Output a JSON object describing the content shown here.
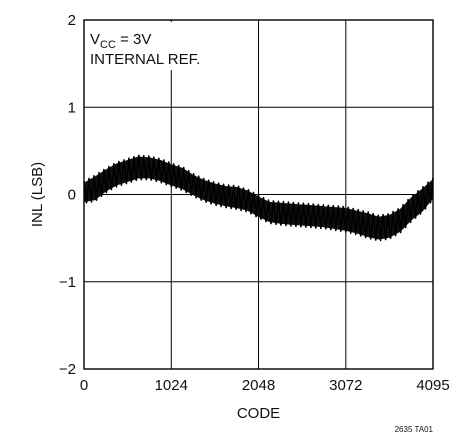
{
  "chart_data": {
    "type": "line",
    "title": "",
    "xlabel": "CODE",
    "ylabel": "INL (LSB)",
    "xlim": [
      0,
      4095
    ],
    "ylim": [
      -2,
      2
    ],
    "grid": true,
    "x_ticks": [
      0,
      1024,
      2048,
      3072,
      4095
    ],
    "x_tick_labels": [
      "0",
      "1024",
      "2048",
      "3072",
      "4095"
    ],
    "y_ticks": [
      -2,
      -1,
      0,
      1,
      2
    ],
    "y_tick_labels": [
      "−2",
      "−1",
      "0",
      "1",
      "2"
    ],
    "annotation": {
      "line1_prefix": "V",
      "line1_sub": "CC",
      "line1_suffix": " = 3V",
      "line2": "INTERNAL REF."
    },
    "figure_id": "2635 TA01",
    "series": [
      {
        "x": [
          0,
          128,
          256,
          384,
          512,
          640,
          768,
          896,
          1024,
          1152,
          1280,
          1408,
          1536,
          1664,
          1792,
          1920,
          2048,
          2176,
          2304,
          2432,
          2560,
          2688,
          2816,
          2944,
          3072,
          3200,
          3328,
          3456,
          3584,
          3712,
          3840,
          3968,
          4095
        ],
        "upper": [
          0.13,
          0.2,
          0.28,
          0.35,
          0.39,
          0.43,
          0.42,
          0.39,
          0.34,
          0.3,
          0.22,
          0.16,
          0.12,
          0.09,
          0.08,
          0.04,
          -0.03,
          -0.09,
          -0.1,
          -0.11,
          -0.12,
          -0.13,
          -0.14,
          -0.15,
          -0.16,
          -0.19,
          -0.22,
          -0.26,
          -0.24,
          -0.17,
          -0.04,
          0.06,
          0.17
        ],
        "lower": [
          -0.08,
          -0.06,
          0.04,
          0.11,
          0.15,
          0.19,
          0.19,
          0.16,
          0.11,
          0.07,
          0.0,
          -0.06,
          -0.1,
          -0.13,
          -0.15,
          -0.18,
          -0.25,
          -0.31,
          -0.33,
          -0.34,
          -0.35,
          -0.36,
          -0.37,
          -0.39,
          -0.41,
          -0.44,
          -0.48,
          -0.51,
          -0.49,
          -0.42,
          -0.29,
          -0.19,
          -0.04
        ]
      }
    ]
  }
}
